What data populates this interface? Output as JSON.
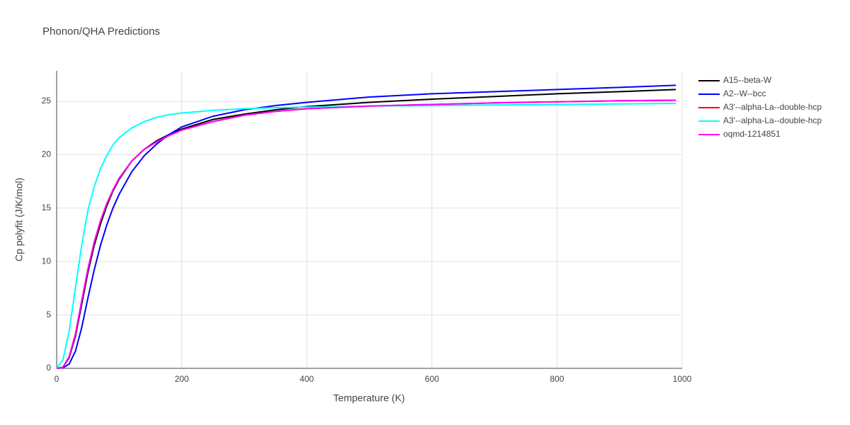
{
  "chart_data": {
    "type": "line",
    "title": "Phonon/QHA Predictions",
    "x_label": "Temperature (K)",
    "y_label": "Cp polyfit (J/K/mol)",
    "xlim": [
      0,
      1000
    ],
    "ylim": [
      0,
      27.85
    ],
    "xticks": [
      0,
      200,
      400,
      600,
      800,
      1000
    ],
    "yticks": [
      0,
      5,
      10,
      15,
      20,
      25
    ],
    "grid": true,
    "legend": "right",
    "x": [
      0,
      10,
      20,
      30,
      40,
      50,
      60,
      70,
      80,
      90,
      100,
      120,
      140,
      160,
      180,
      200,
      250,
      300,
      350,
      400,
      500,
      600,
      700,
      800,
      900,
      990
    ],
    "series": [
      {
        "name": "A15--beta-W",
        "color": "#000000",
        "values": [
          0,
          0.1,
          1.0,
          3.0,
          6.0,
          9.0,
          11.5,
          13.5,
          15.2,
          16.6,
          17.7,
          19.4,
          20.5,
          21.3,
          21.9,
          22.4,
          23.3,
          23.8,
          24.2,
          24.5,
          24.9,
          25.2,
          25.45,
          25.7,
          25.9,
          26.1
        ]
      },
      {
        "name": "A2--W--bcc",
        "color": "#0000ff",
        "values": [
          0,
          0.05,
          0.4,
          1.6,
          3.8,
          6.6,
          9.2,
          11.5,
          13.4,
          15.0,
          16.3,
          18.4,
          19.9,
          21.0,
          21.9,
          22.6,
          23.6,
          24.2,
          24.6,
          24.9,
          25.4,
          25.7,
          25.9,
          26.1,
          26.3,
          26.5
        ]
      },
      {
        "name": "A3'--alpha-La--double-hcp",
        "color": "#ff0000",
        "values": [
          0,
          0.1,
          1.1,
          3.2,
          6.3,
          9.3,
          11.8,
          13.8,
          15.4,
          16.7,
          17.8,
          19.4,
          20.5,
          21.2,
          21.8,
          22.3,
          23.1,
          23.7,
          24.05,
          24.3,
          24.55,
          24.7,
          24.85,
          24.95,
          25.05,
          25.1
        ]
      },
      {
        "name": "A3'--alpha-La--double-hcp",
        "color": "#00ffff",
        "values": [
          0,
          0.8,
          3.5,
          7.5,
          11.5,
          14.8,
          17.0,
          18.7,
          19.9,
          20.9,
          21.6,
          22.5,
          23.1,
          23.5,
          23.75,
          23.9,
          24.15,
          24.3,
          24.4,
          24.45,
          24.55,
          24.6,
          24.65,
          24.7,
          24.75,
          24.8
        ]
      },
      {
        "name": "oqmd-1214851",
        "color": "#ff00ff",
        "values": [
          0,
          0.1,
          1.1,
          3.2,
          6.3,
          9.3,
          11.8,
          13.8,
          15.4,
          16.7,
          17.8,
          19.4,
          20.5,
          21.2,
          21.8,
          22.3,
          23.1,
          23.7,
          24.05,
          24.3,
          24.55,
          24.7,
          24.85,
          24.95,
          25.05,
          25.1
        ]
      }
    ]
  }
}
